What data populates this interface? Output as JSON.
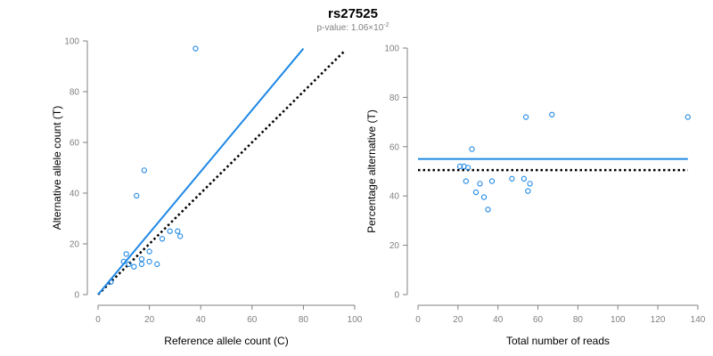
{
  "header": {
    "title": "rs27525",
    "subtitle_prefix": "p-value: 1.06×10",
    "subtitle_exponent": "-2"
  },
  "colors": {
    "fit_line": "#1e88e5",
    "points": "#1e88e5",
    "reference_line": "#000000",
    "axis": "#808080"
  },
  "chart_data": [
    {
      "type": "scatter",
      "xlabel": "Reference allele count (C)",
      "ylabel": "Alternative allele count (T)",
      "xlim": [
        0,
        100
      ],
      "ylim": [
        0,
        100
      ],
      "x_ticks": [
        0,
        20,
        40,
        60,
        80,
        100
      ],
      "y_ticks": [
        0,
        20,
        40,
        60,
        80,
        100
      ],
      "grid": false,
      "points": [
        {
          "x": 38,
          "y": 97
        },
        {
          "x": 18,
          "y": 49
        },
        {
          "x": 15,
          "y": 39
        },
        {
          "x": 28,
          "y": 25
        },
        {
          "x": 31,
          "y": 25
        },
        {
          "x": 32,
          "y": 23
        },
        {
          "x": 25,
          "y": 22
        },
        {
          "x": 20,
          "y": 17
        },
        {
          "x": 11,
          "y": 16
        },
        {
          "x": 17,
          "y": 14
        },
        {
          "x": 10,
          "y": 13
        },
        {
          "x": 20,
          "y": 13
        },
        {
          "x": 12,
          "y": 12
        },
        {
          "x": 17,
          "y": 12
        },
        {
          "x": 23,
          "y": 12
        },
        {
          "x": 14,
          "y": 11
        },
        {
          "x": 5,
          "y": 5
        }
      ],
      "fit_line": {
        "x": [
          0,
          80
        ],
        "y": [
          0,
          97
        ]
      },
      "reference_line": {
        "x": [
          0,
          96
        ],
        "y": [
          0,
          96
        ]
      }
    },
    {
      "type": "scatter",
      "xlabel": "Total number of reads",
      "ylabel": "Percentage alternative (T)",
      "xlim": [
        0,
        140
      ],
      "ylim": [
        0,
        100
      ],
      "x_ticks": [
        0,
        20,
        40,
        60,
        80,
        100,
        120,
        140
      ],
      "y_ticks": [
        0,
        20,
        40,
        60,
        80,
        100
      ],
      "grid": false,
      "points": [
        {
          "x": 21,
          "y": 52
        },
        {
          "x": 23,
          "y": 52
        },
        {
          "x": 25,
          "y": 51.5
        },
        {
          "x": 27,
          "y": 59
        },
        {
          "x": 24,
          "y": 46
        },
        {
          "x": 29,
          "y": 41.5
        },
        {
          "x": 31,
          "y": 45
        },
        {
          "x": 33,
          "y": 39.5
        },
        {
          "x": 35,
          "y": 34.5
        },
        {
          "x": 37,
          "y": 46
        },
        {
          "x": 47,
          "y": 47
        },
        {
          "x": 53,
          "y": 47
        },
        {
          "x": 55,
          "y": 42
        },
        {
          "x": 56,
          "y": 45
        },
        {
          "x": 54,
          "y": 72
        },
        {
          "x": 67,
          "y": 73
        },
        {
          "x": 135,
          "y": 72
        }
      ],
      "fit_line": {
        "x": [
          0,
          135
        ],
        "y": [
          55,
          55
        ]
      },
      "reference_line": {
        "x": [
          0,
          135
        ],
        "y": [
          50.5,
          50.5
        ]
      }
    }
  ]
}
